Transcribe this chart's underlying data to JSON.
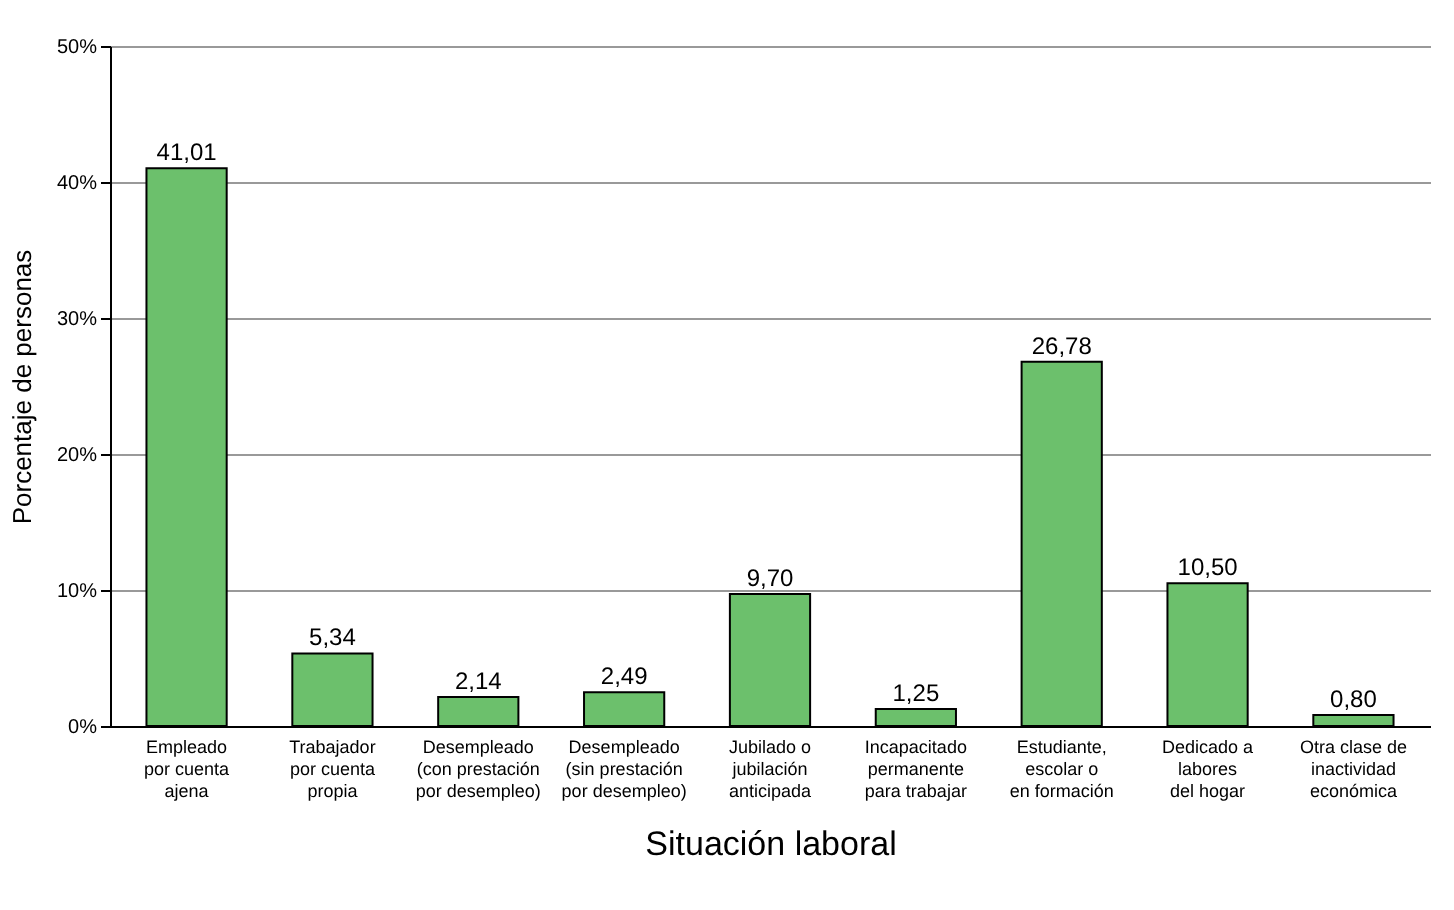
{
  "chart_data": {
    "type": "bar",
    "xlabel": "Situación laboral",
    "ylabel": "Porcentaje de personas",
    "categories": [
      "Empleado\npor cuenta\najena",
      "Trabajador\npor cuenta\npropia",
      "Desempleado\n(con prestación\npor desempleo)",
      "Desempleado\n(sin prestación\npor desempleo)",
      "Jubilado o\njubilación\nanticipada",
      "Incapacitado\npermanente\npara trabajar",
      "Estudiante,\nescolar o\nen formación",
      "Dedicado a\nlabores\ndel hogar",
      "Otra clase de\ninactividad\neconómica"
    ],
    "values": [
      41.01,
      5.34,
      2.14,
      2.49,
      9.7,
      1.25,
      26.78,
      10.5,
      0.8
    ],
    "value_labels": [
      "41,01",
      "5,34",
      "2,14",
      "2,49",
      "9,70",
      "1,25",
      "26,78",
      "10,50",
      "0,80"
    ],
    "color": "#6cc06c",
    "ylim": [
      0,
      50
    ],
    "yticks": [
      {
        "value": 0,
        "label": "0%"
      },
      {
        "value": 10,
        "label": "10%"
      },
      {
        "value": 20,
        "label": "20%"
      },
      {
        "value": 30,
        "label": "30%"
      },
      {
        "value": 40,
        "label": "40%"
      },
      {
        "value": 50,
        "label": "50%"
      }
    ],
    "grid": "y"
  }
}
